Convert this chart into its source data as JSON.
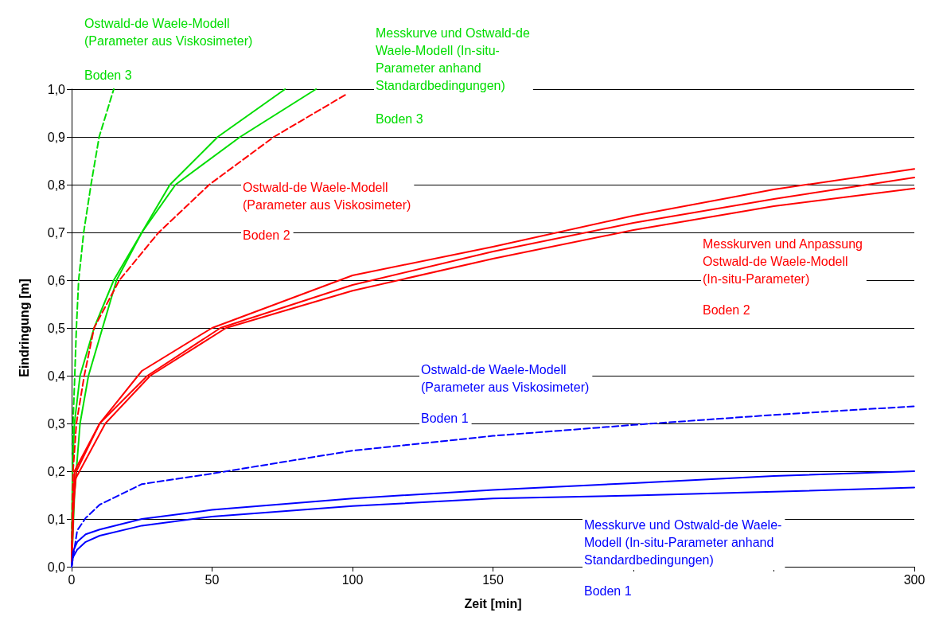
{
  "chart_data": {
    "type": "line",
    "xlabel": "Zeit [min]",
    "ylabel": "Eindringung [m]",
    "xlim": [
      0,
      300
    ],
    "xticks": [
      0,
      50,
      100,
      150,
      {
        "value": 200,
        "label": null
      },
      {
        "value": 250,
        "label": null
      },
      300
    ],
    "ylim": [
      0,
      1
    ],
    "yticks": [
      {
        "value": 0,
        "label": "0,0"
      },
      {
        "value": 0.1,
        "label": "0,1"
      },
      {
        "value": 0.2,
        "label": "0,2"
      },
      {
        "value": 0.3,
        "label": "0,3"
      },
      {
        "value": 0.4,
        "label": "0,4"
      },
      {
        "value": 0.5,
        "label": "0,5"
      },
      {
        "value": 0.6,
        "label": "0,6"
      },
      {
        "value": 0.7,
        "label": "0,7"
      },
      {
        "value": 0.8,
        "label": "0,8"
      },
      {
        "value": 0.9,
        "label": "0,9"
      },
      {
        "value": 1,
        "label": "1,0"
      }
    ],
    "grid": "y",
    "legend": false,
    "marker": "none",
    "series": [
      {
        "color": "#00dd00",
        "line_style": "dashed",
        "x": [
          0,
          0.5,
          1,
          1.7,
          2.5,
          4.3,
          6.9,
          9.8,
          15
        ],
        "values": [
          0,
          0.3,
          0.38,
          0.5,
          0.6,
          0.7,
          0.8,
          0.9,
          1.0
        ]
      },
      {
        "color": "#00dd00",
        "line_style": "solid",
        "x": [
          0,
          0.3,
          1,
          3,
          8,
          15,
          25,
          37,
          60,
          87
        ],
        "values": [
          0,
          0.2,
          0.3,
          0.4,
          0.5,
          0.6,
          0.7,
          0.8,
          0.9,
          1.0
        ]
      },
      {
        "color": "#00dd00",
        "line_style": "solid",
        "x": [
          0,
          1,
          3,
          6,
          11,
          16,
          25,
          35,
          52,
          76
        ],
        "values": [
          0,
          0.15,
          0.3,
          0.4,
          0.5,
          0.6,
          0.7,
          0.8,
          0.9,
          1.0
        ]
      },
      {
        "color": "#ff0000",
        "line_style": "dashed",
        "x": [
          0,
          0.5,
          1.7,
          4.5,
          8,
          17,
          31,
          49,
          72,
          98
        ],
        "values": [
          0,
          0.2,
          0.3,
          0.4,
          0.5,
          0.6,
          0.7,
          0.8,
          0.9,
          0.99
        ]
      },
      {
        "color": "#ff0000",
        "line_style": "solid",
        "x": [
          0,
          0.3,
          1.7,
          10,
          27,
          53,
          100,
          150,
          200,
          250,
          300
        ],
        "values": [
          0,
          0.1,
          0.2,
          0.3,
          0.4,
          0.5,
          0.59,
          0.66,
          0.72,
          0.77,
          0.815
        ]
      },
      {
        "color": "#ff0000",
        "line_style": "solid",
        "x": [
          0,
          1,
          10,
          25,
          50,
          100,
          150,
          200,
          250,
          300
        ],
        "values": [
          0,
          0.2,
          0.3,
          0.41,
          0.5,
          0.61,
          0.67,
          0.735,
          0.79,
          0.833
        ]
      },
      {
        "color": "#ff0000",
        "line_style": "solid",
        "x": [
          0,
          1,
          12,
          28,
          55,
          100,
          150,
          200,
          250,
          300
        ],
        "values": [
          0,
          0.18,
          0.3,
          0.4,
          0.5,
          0.578,
          0.645,
          0.705,
          0.755,
          0.792
        ]
      },
      {
        "color": "#0000ff",
        "line_style": "dashed",
        "x": [
          0,
          2,
          5,
          10,
          25,
          50,
          100,
          150,
          200,
          250,
          300
        ],
        "values": [
          0,
          0.076,
          0.102,
          0.13,
          0.173,
          0.195,
          0.243,
          0.274,
          0.297,
          0.318,
          0.336
        ]
      },
      {
        "color": "#0000ff",
        "line_style": "solid",
        "x": [
          0,
          0.5,
          2,
          5,
          10,
          25,
          50,
          100,
          150,
          200,
          250,
          300
        ],
        "values": [
          0,
          0.032,
          0.052,
          0.068,
          0.078,
          0.1,
          0.119,
          0.143,
          0.161,
          0.175,
          0.19,
          0.2
        ]
      },
      {
        "color": "#0000ff",
        "line_style": "solid",
        "x": [
          0,
          0.5,
          2,
          5,
          10,
          25,
          50,
          100,
          150,
          200,
          250,
          300
        ],
        "values": [
          0,
          0.02,
          0.036,
          0.052,
          0.065,
          0.086,
          0.105,
          0.127,
          0.143,
          0.149,
          0.157,
          0.166
        ]
      }
    ],
    "annotations": [
      "Ostwald-de Waele-Modell\n(Parameter aus Viskosimeter)",
      "Boden 3",
      "Messkurve und Ostwald-de\nWaele-Modell (In-situ-\nParameter anhand\nStandardbedingungen)",
      "Boden 3",
      "Ostwald-de Waele-Modell\n(Parameter aus Viskosimeter)",
      "Boden 2",
      "Messkurven und Anpassung\nOstwald-de Waele-Modell\n(In-situ-Parameter)",
      "Boden 2",
      "Ostwald-de Waele-Modell\n(Parameter aus Viskosimeter)",
      "Boden 1",
      "Messkurve und Ostwald-de Waele-\nModell (In-situ-Parameter anhand\nStandardbedingungen)",
      "Boden 1"
    ]
  }
}
